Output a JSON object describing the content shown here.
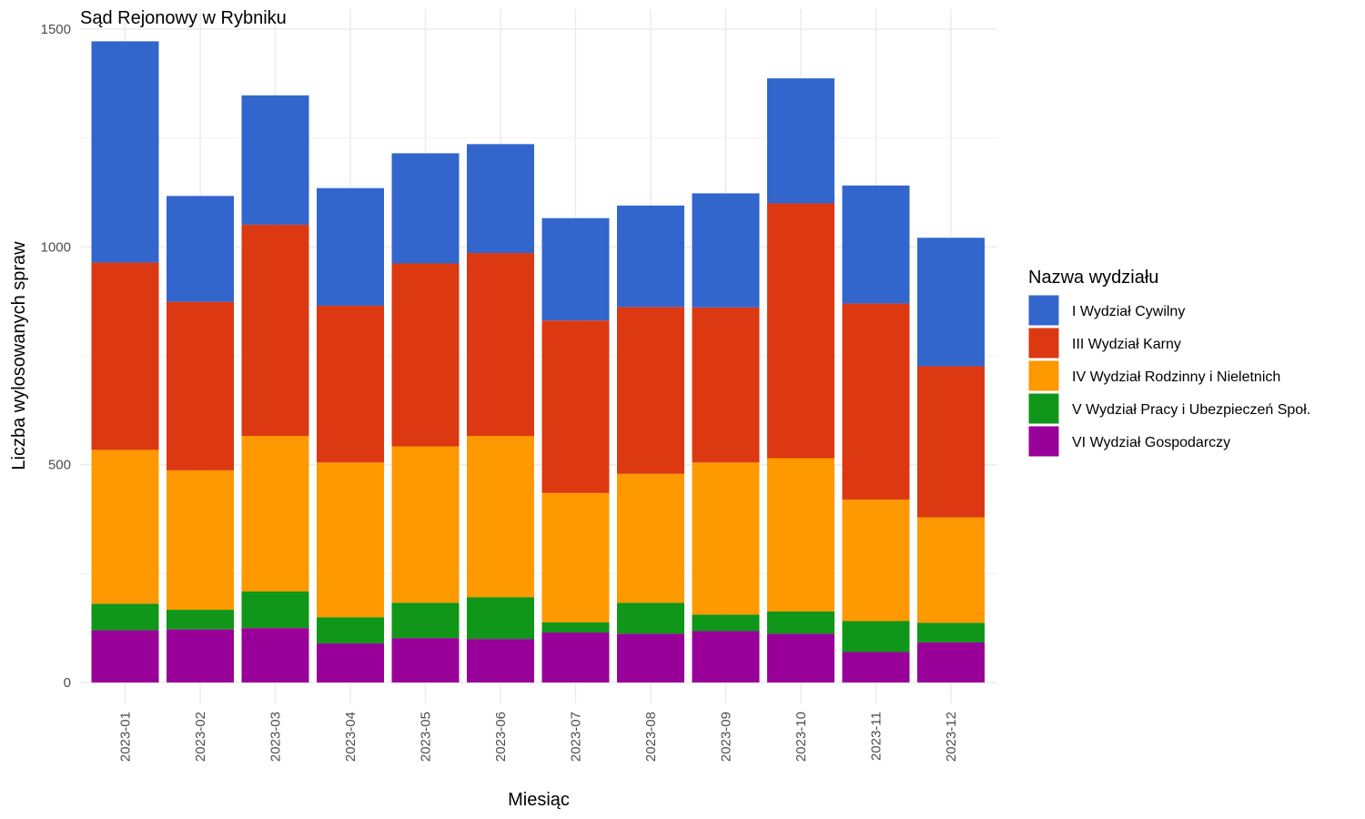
{
  "chart_data": {
    "type": "bar",
    "stacked": true,
    "title": "Sąd Rejonowy w Rybniku",
    "xlabel": "Miesiąc",
    "ylabel": "Liczba wylosowanych spraw",
    "ylim": [
      0,
      1500
    ],
    "yticks": [
      "0",
      "500",
      "1000",
      "1500"
    ],
    "grid": true,
    "legend_title": "Nazwa wydziału",
    "legend_position": "right",
    "categories": [
      "2023-01",
      "2023-02",
      "2023-03",
      "2023-04",
      "2023-05",
      "2023-06",
      "2023-07",
      "2023-08",
      "2023-09",
      "2023-10",
      "2023-11",
      "2023-12"
    ],
    "series": [
      {
        "name": "VI Wydział Gospodarczy",
        "color": "#990099",
        "values": [
          120,
          122,
          125,
          90,
          102,
          100,
          115,
          112,
          118,
          112,
          70,
          92
        ]
      },
      {
        "name": "V Wydział Pracy i Ubezpieczeń Społ.",
        "color": "#109618",
        "values": [
          61,
          45,
          84,
          60,
          81,
          96,
          23,
          71,
          38,
          51,
          71,
          45
        ]
      },
      {
        "name": "IV Wydział Rodzinny i Nieletnich",
        "color": "#ff9900",
        "values": [
          353,
          320,
          357,
          355,
          359,
          370,
          297,
          296,
          349,
          352,
          279,
          242
        ]
      },
      {
        "name": "III Wydział Karny",
        "color": "#dc3912",
        "values": [
          430,
          387,
          485,
          360,
          420,
          420,
          396,
          383,
          356,
          585,
          450,
          347
        ]
      },
      {
        "name": "I Wydział Cywilny",
        "color": "#3366cc",
        "values": [
          508,
          243,
          297,
          270,
          253,
          250,
          235,
          233,
          262,
          287,
          271,
          295
        ]
      }
    ],
    "legend_order": [
      "I Wydział Cywilny",
      "III Wydział Karny",
      "IV Wydział Rodzinny i Nieletnich",
      "V Wydział Pracy i Ubezpieczeń Społ.",
      "VI Wydział Gospodarczy"
    ]
  }
}
